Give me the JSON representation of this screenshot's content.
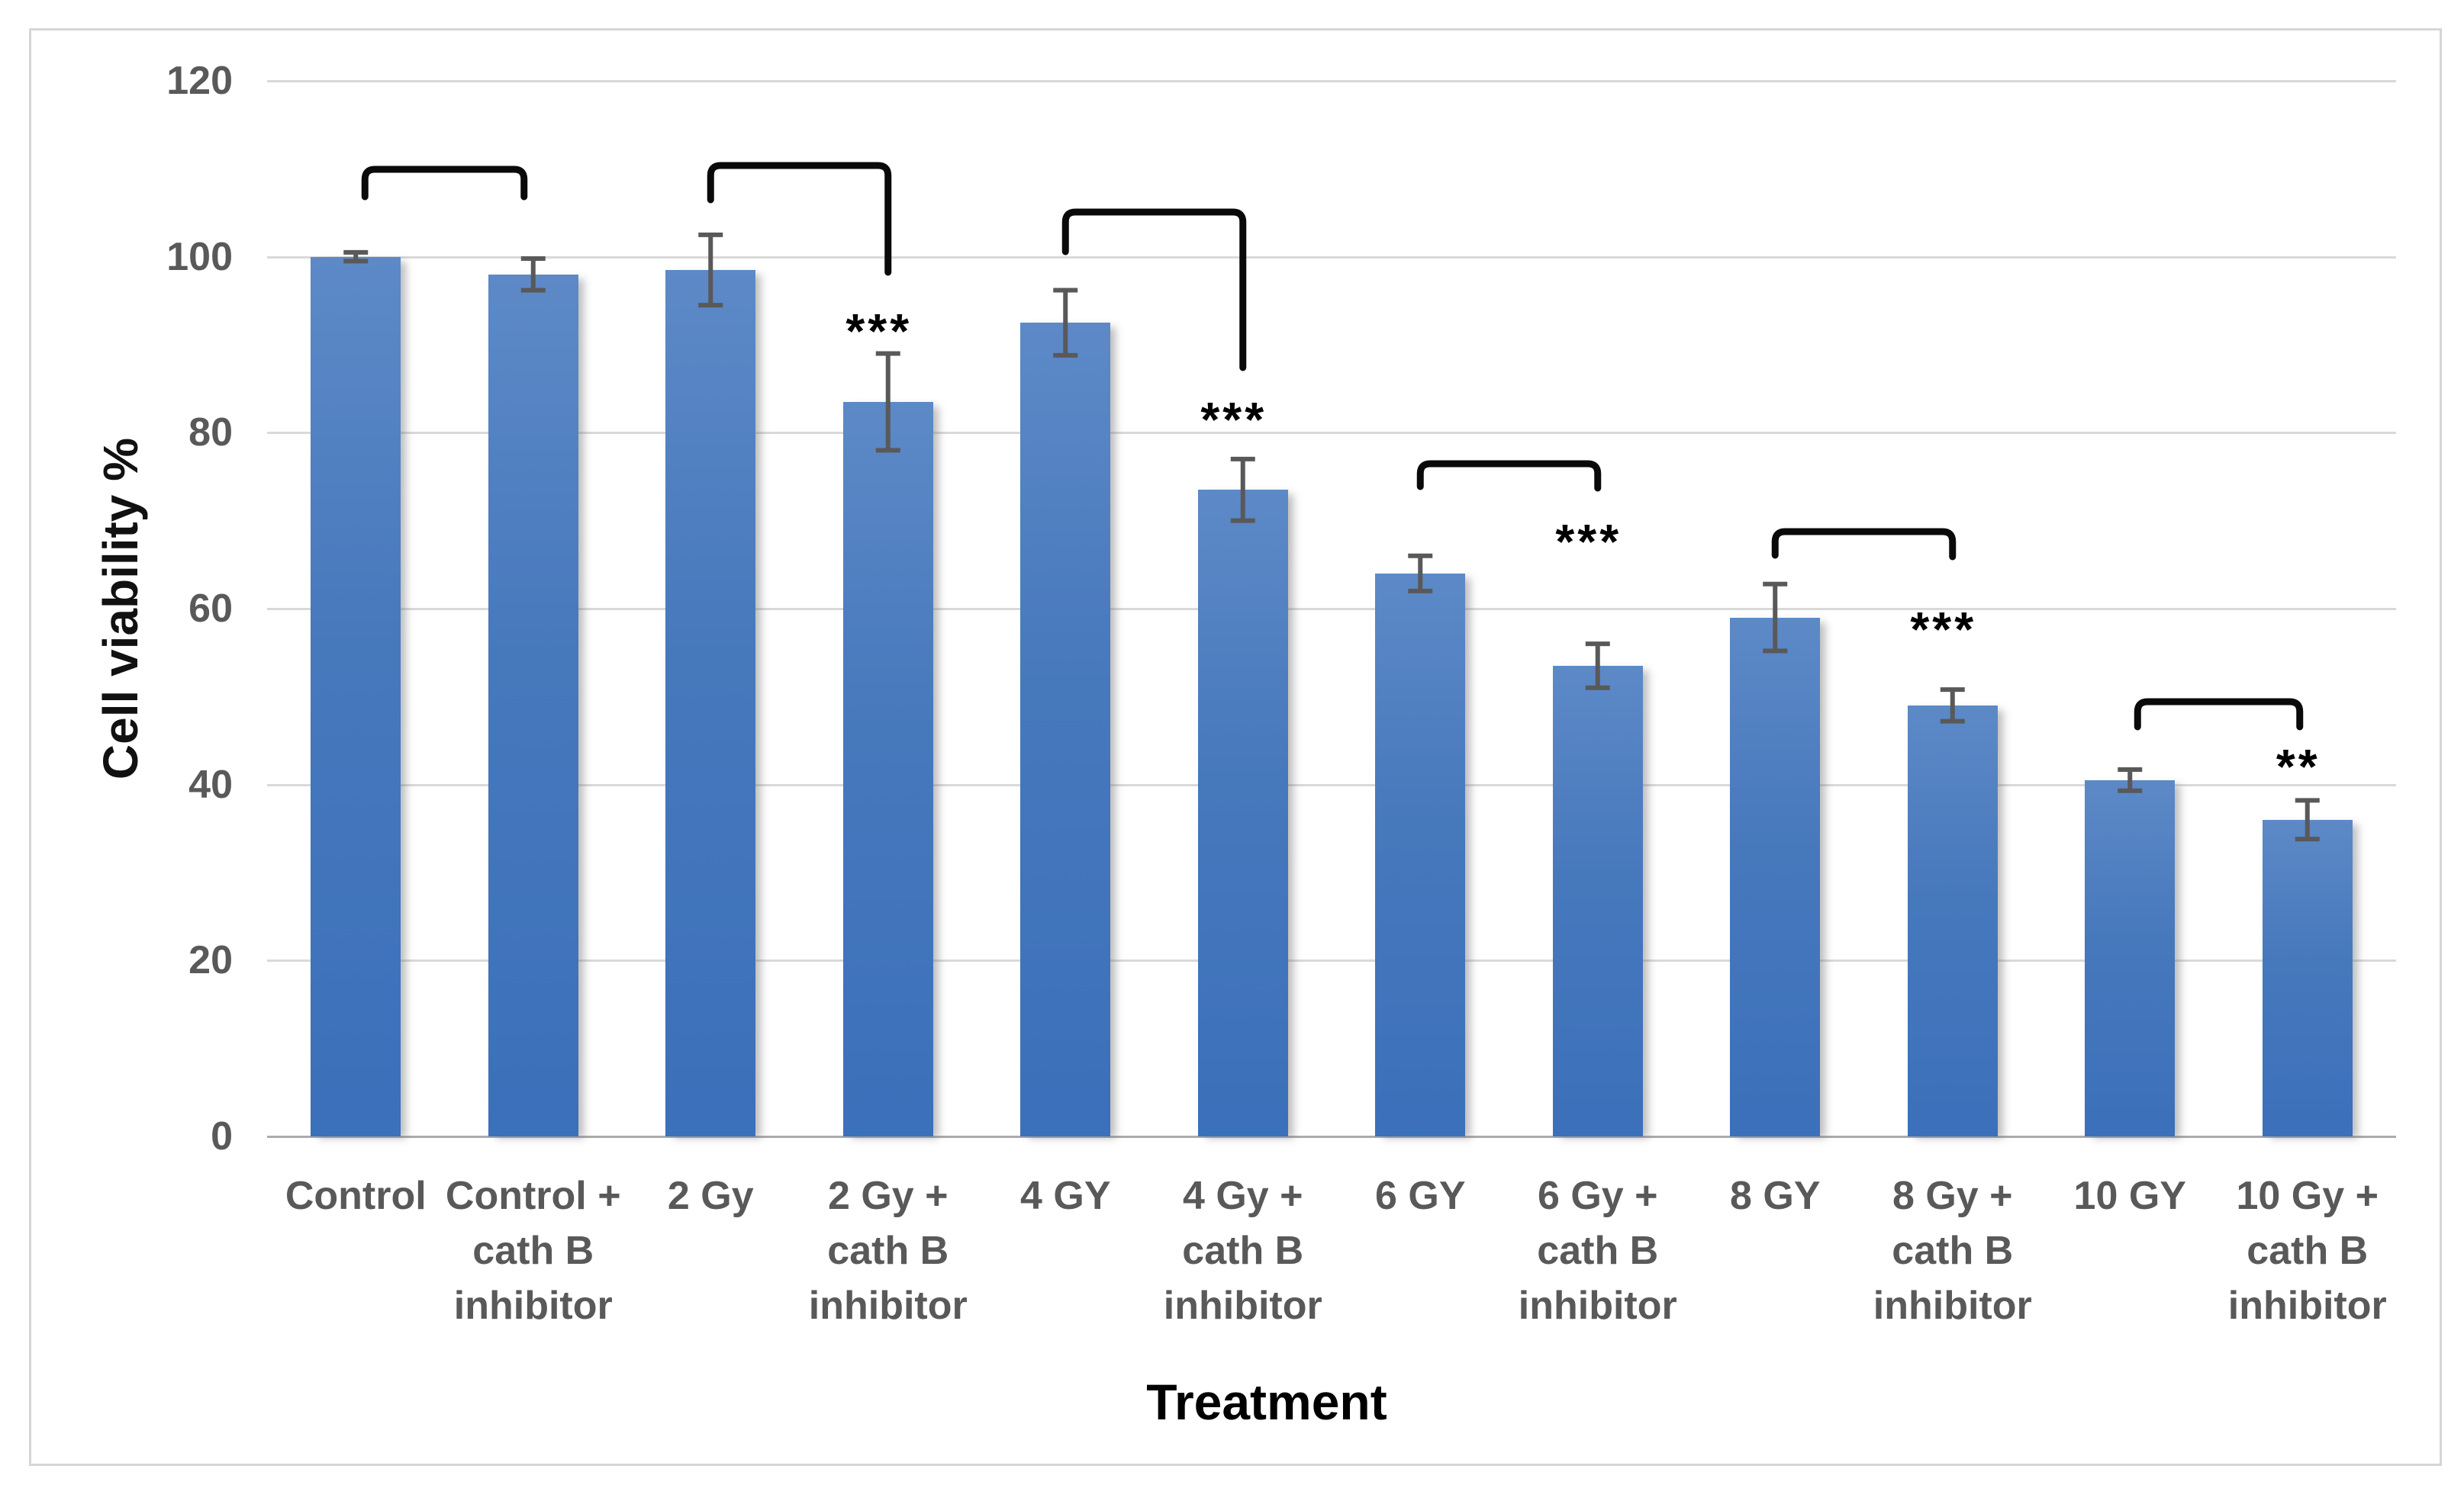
{
  "figure": {
    "background_color": "#FFFFFF",
    "border_color": "#D6D6D6"
  },
  "labels": {
    "x_axis_title": "Treatment",
    "y_axis_title": "Cell viability %"
  },
  "colors": {
    "bar_fill": "#4377BD",
    "bar_fill_light": "#5D89C7",
    "bar_fill_dark": "#3B70BA",
    "gridline": "#D9D9D9",
    "axis_line": "#ABABAB",
    "tick_label": "#595959",
    "error_bar": "#595959",
    "bracket": "#0A0A0A",
    "significance_text": "#000000"
  },
  "chart_data": {
    "type": "bar",
    "title": "",
    "xlabel": "Treatment",
    "ylabel": "Cell viability %",
    "ylim": [
      0,
      120
    ],
    "yticks": [
      0,
      20,
      40,
      60,
      80,
      100,
      120
    ],
    "grid": "horizontal",
    "legend": "none",
    "categories": [
      "Control",
      "Control + cath B inhibitor",
      "2 Gy",
      "2 Gy + cath B inhibitor",
      "4 GY",
      "4 Gy + cath B inhibitor",
      "6 GY",
      "6 Gy + cath B inhibitor",
      "8 GY",
      "8 Gy + cath B inhibitor",
      "10 GY",
      "10 Gy + cath B inhibitor"
    ],
    "category_lines": [
      [
        "Control"
      ],
      [
        "Control +",
        "cath B",
        "inhibitor"
      ],
      [
        "2 Gy"
      ],
      [
        "2 Gy +",
        "cath B",
        "inhibitor"
      ],
      [
        "4 GY"
      ],
      [
        "4 Gy +",
        "cath B",
        "inhibitor"
      ],
      [
        "6 GY"
      ],
      [
        "6 Gy +",
        "cath B",
        "inhibitor"
      ],
      [
        "8 GY"
      ],
      [
        "8 Gy +",
        "cath B",
        "inhibitor"
      ],
      [
        "10 GY"
      ],
      [
        "10 Gy +",
        "cath B",
        "inhibitor"
      ]
    ],
    "values": [
      100,
      98,
      98.5,
      83.5,
      92.5,
      73.5,
      64,
      53.5,
      59,
      49,
      40.5,
      36
    ],
    "error_bars": [
      0.5,
      1.8,
      4,
      5.5,
      3.7,
      3.5,
      2,
      2.5,
      3.8,
      1.8,
      1.2,
      2.2
    ],
    "significance_markers": [
      {
        "category_index": 3,
        "label": "***"
      },
      {
        "category_index": 5,
        "label": "***"
      },
      {
        "category_index": 7,
        "label": "***"
      },
      {
        "category_index": 9,
        "label": "***"
      },
      {
        "category_index": 11,
        "label": "**"
      }
    ],
    "comparison_brackets": [
      {
        "from_index": 0,
        "to_index": 1
      },
      {
        "from_index": 2,
        "to_index": 3
      },
      {
        "from_index": 4,
        "to_index": 5
      },
      {
        "from_index": 6,
        "to_index": 7
      },
      {
        "from_index": 8,
        "to_index": 9
      },
      {
        "from_index": 10,
        "to_index": 11
      }
    ]
  }
}
